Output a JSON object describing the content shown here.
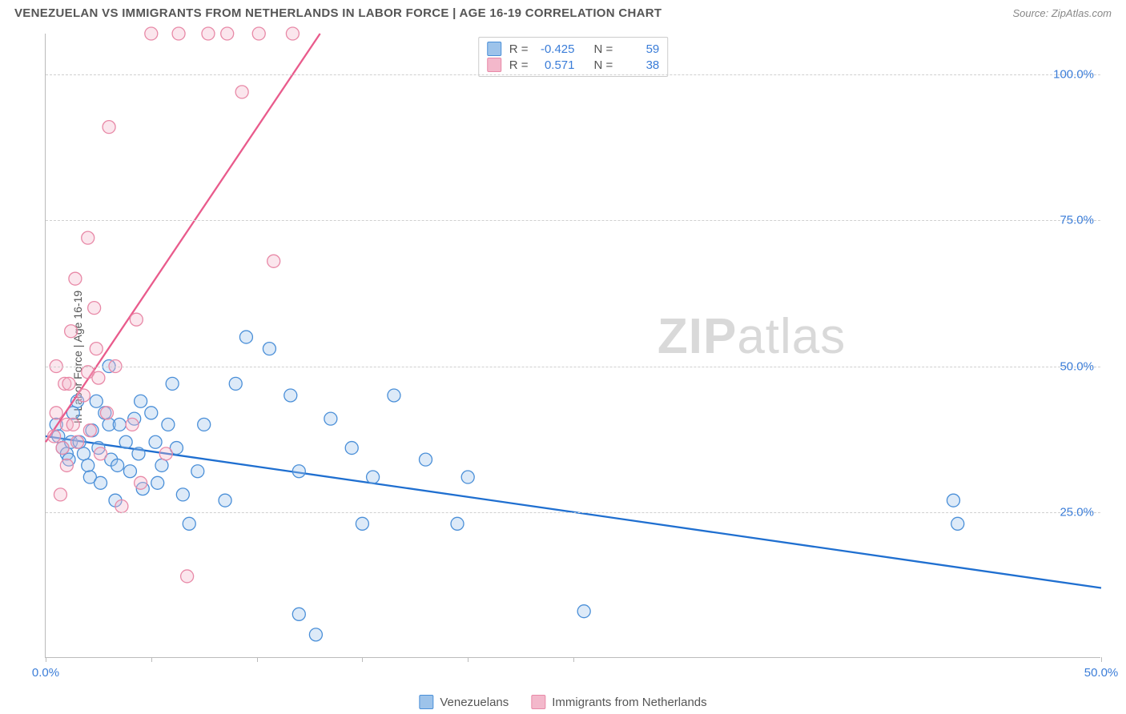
{
  "header": {
    "title": "VENEZUELAN VS IMMIGRANTS FROM NETHERLANDS IN LABOR FORCE | AGE 16-19 CORRELATION CHART",
    "source": "Source: ZipAtlas.com"
  },
  "ylabel": "In Labor Force | Age 16-19",
  "watermark": {
    "zip": "ZIP",
    "atlas": "atlas"
  },
  "chart": {
    "type": "scatter",
    "xlim": [
      0,
      50
    ],
    "ylim": [
      0,
      107
    ],
    "y_gridlines": [
      25,
      50,
      75,
      100
    ],
    "ytick_labels": [
      "25.0%",
      "50.0%",
      "75.0%",
      "100.0%"
    ],
    "xticks": [
      0,
      5,
      10,
      15,
      20,
      25,
      50
    ],
    "xtick_labels": {
      "0": "0.0%",
      "50": "50.0%"
    },
    "background_color": "#ffffff",
    "grid_color": "#d0d0d0",
    "axis_color": "#bbbbbb",
    "tick_label_color": "#3b7dd8",
    "marker_radius": 8,
    "marker_fill_opacity": 0.35,
    "marker_stroke_width": 1.3,
    "series": [
      {
        "id": "venezuelans",
        "label": "Venezuelans",
        "color_stroke": "#4a8fd8",
        "color_fill": "#9dc3ea",
        "trend": {
          "x1": 0,
          "y1": 38,
          "x2": 50,
          "y2": 12,
          "stroke": "#1f6fd0",
          "width": 2.3
        },
        "points": [
          [
            0.5,
            40
          ],
          [
            0.6,
            38
          ],
          [
            0.8,
            36
          ],
          [
            1.0,
            35
          ],
          [
            1.1,
            34
          ],
          [
            1.2,
            37
          ],
          [
            1.3,
            42
          ],
          [
            1.5,
            44
          ],
          [
            1.6,
            37
          ],
          [
            1.8,
            35
          ],
          [
            2.0,
            33
          ],
          [
            2.1,
            31
          ],
          [
            2.2,
            39
          ],
          [
            2.4,
            44
          ],
          [
            2.5,
            36
          ],
          [
            2.6,
            30
          ],
          [
            2.8,
            42
          ],
          [
            3.0,
            50
          ],
          [
            3.0,
            40
          ],
          [
            3.1,
            34
          ],
          [
            3.3,
            27
          ],
          [
            3.4,
            33
          ],
          [
            3.5,
            40
          ],
          [
            3.8,
            37
          ],
          [
            4.0,
            32
          ],
          [
            4.2,
            41
          ],
          [
            4.4,
            35
          ],
          [
            4.5,
            44
          ],
          [
            4.6,
            29
          ],
          [
            5.0,
            42
          ],
          [
            5.2,
            37
          ],
          [
            5.3,
            30
          ],
          [
            5.5,
            33
          ],
          [
            5.8,
            40
          ],
          [
            6.0,
            47
          ],
          [
            6.2,
            36
          ],
          [
            6.5,
            28
          ],
          [
            6.8,
            23
          ],
          [
            7.2,
            32
          ],
          [
            7.5,
            40
          ],
          [
            8.5,
            27
          ],
          [
            9.0,
            47
          ],
          [
            9.5,
            55
          ],
          [
            10.6,
            53
          ],
          [
            11.6,
            45
          ],
          [
            12.0,
            32
          ],
          [
            12.0,
            7.5
          ],
          [
            12.8,
            4
          ],
          [
            13.5,
            41
          ],
          [
            14.5,
            36
          ],
          [
            15.0,
            23
          ],
          [
            15.5,
            31
          ],
          [
            16.5,
            45
          ],
          [
            18.0,
            34
          ],
          [
            19.5,
            23
          ],
          [
            20.0,
            31
          ],
          [
            25.5,
            8
          ],
          [
            43.0,
            27
          ],
          [
            43.2,
            23
          ]
        ]
      },
      {
        "id": "netherlands",
        "label": "Immigrants from Netherlands",
        "color_stroke": "#e889a7",
        "color_fill": "#f3b8cb",
        "trend": {
          "x1": 0,
          "y1": 37,
          "x2": 13.0,
          "y2": 107,
          "stroke": "#e95b8c",
          "width": 2.3
        },
        "points": [
          [
            0.4,
            38
          ],
          [
            0.5,
            42
          ],
          [
            0.5,
            50
          ],
          [
            0.7,
            28
          ],
          [
            0.8,
            36
          ],
          [
            0.9,
            47
          ],
          [
            1.0,
            33
          ],
          [
            1.0,
            40
          ],
          [
            1.1,
            47
          ],
          [
            1.2,
            56
          ],
          [
            1.3,
            40
          ],
          [
            1.4,
            65
          ],
          [
            1.5,
            37
          ],
          [
            1.8,
            45
          ],
          [
            2.0,
            49
          ],
          [
            2.0,
            72
          ],
          [
            2.1,
            39
          ],
          [
            2.3,
            60
          ],
          [
            2.4,
            53
          ],
          [
            2.5,
            48
          ],
          [
            2.6,
            35
          ],
          [
            2.9,
            42
          ],
          [
            3.0,
            91
          ],
          [
            3.3,
            50
          ],
          [
            3.6,
            26
          ],
          [
            4.1,
            40
          ],
          [
            4.3,
            58
          ],
          [
            4.5,
            30
          ],
          [
            5.0,
            107
          ],
          [
            5.7,
            35
          ],
          [
            6.3,
            107
          ],
          [
            6.7,
            14
          ],
          [
            7.7,
            107
          ],
          [
            8.6,
            107
          ],
          [
            9.3,
            97
          ],
          [
            10.1,
            107
          ],
          [
            10.8,
            68
          ],
          [
            11.7,
            107
          ]
        ]
      }
    ]
  },
  "stats": {
    "rows": [
      {
        "swatch_stroke": "#4a8fd8",
        "swatch_fill": "#9dc3ea",
        "r": "-0.425",
        "n": "59"
      },
      {
        "swatch_stroke": "#e889a7",
        "swatch_fill": "#f3b8cb",
        "r": "0.571",
        "n": "38"
      }
    ],
    "labels": {
      "r": "R =",
      "n": "N ="
    }
  },
  "legend_bottom": [
    {
      "label": "Venezuelans",
      "swatch_stroke": "#4a8fd8",
      "swatch_fill": "#9dc3ea"
    },
    {
      "label": "Immigrants from Netherlands",
      "swatch_stroke": "#e889a7",
      "swatch_fill": "#f3b8cb"
    }
  ]
}
